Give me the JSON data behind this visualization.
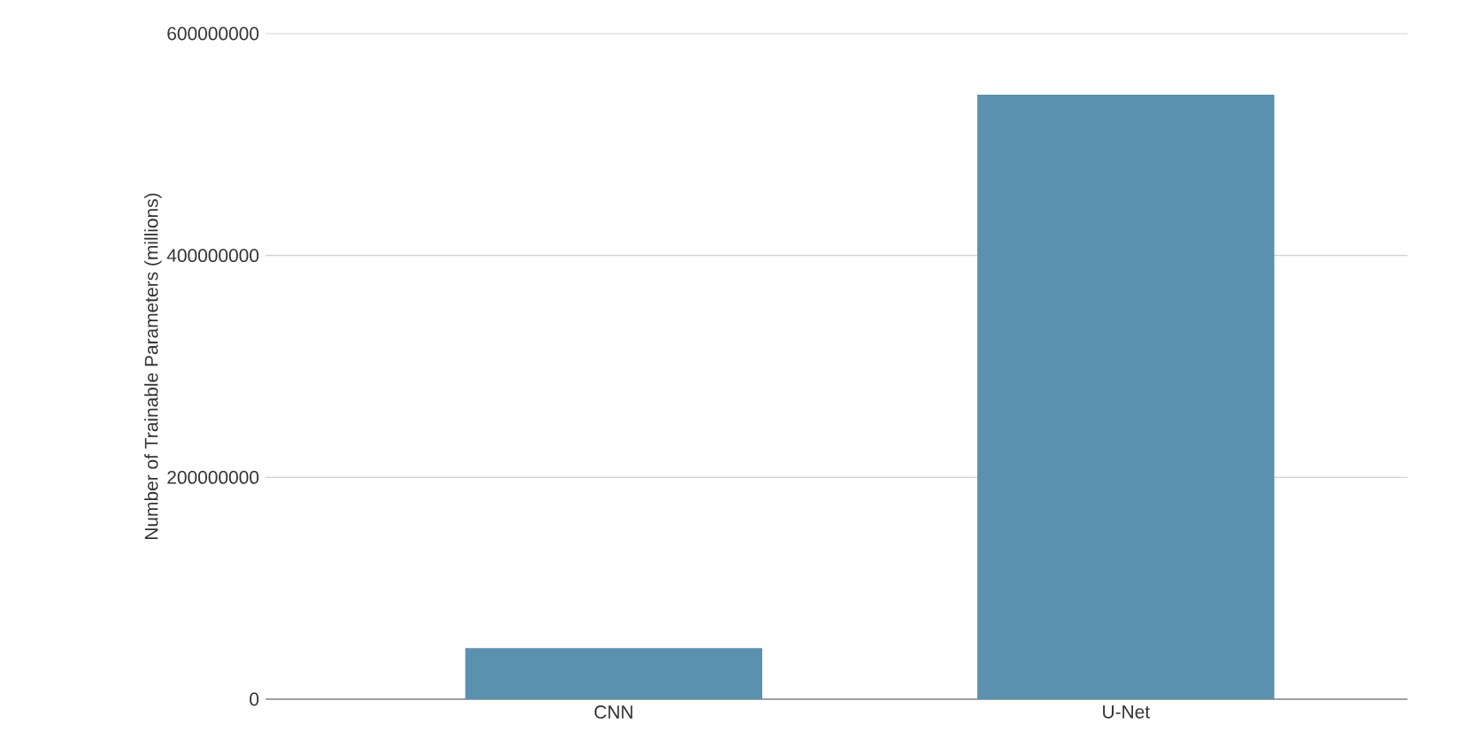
{
  "chart_data": {
    "type": "bar",
    "ylabel": "Number of Trainable Parameters (millions)",
    "categories": [
      "CNN",
      "U-Net"
    ],
    "values": [
      46000000,
      545000000
    ],
    "color": "#5a91ae",
    "ylim": [
      0,
      600000000
    ],
    "yticks": [
      0,
      200000000,
      400000000,
      600000000
    ],
    "grid": "y"
  }
}
